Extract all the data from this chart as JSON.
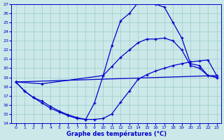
{
  "xlabel": "Graphe des températures (°C)",
  "xlim": [
    -0.5,
    23.5
  ],
  "ylim": [
    14,
    27
  ],
  "yticks": [
    14,
    15,
    16,
    17,
    18,
    19,
    20,
    21,
    22,
    23,
    24,
    25,
    26,
    27
  ],
  "xticks": [
    0,
    1,
    2,
    3,
    4,
    5,
    6,
    7,
    8,
    9,
    10,
    11,
    12,
    13,
    14,
    15,
    16,
    17,
    18,
    19,
    20,
    21,
    22,
    23
  ],
  "bg_color": "#cce8e8",
  "line_color": "#0000cc",
  "grid_color": "#99cccc",
  "line1_x": [
    0,
    1,
    2,
    3,
    4,
    5,
    6,
    7,
    8,
    9,
    10,
    11,
    12,
    13,
    14,
    15,
    16,
    17,
    18,
    19,
    20,
    21,
    22,
    23
  ],
  "line1_y": [
    18.5,
    17.5,
    16.8,
    16.2,
    15.6,
    15.2,
    14.8,
    14.5,
    14.4,
    16.2,
    19.2,
    22.5,
    25.2,
    26.0,
    27.2,
    27.2,
    27.0,
    26.7,
    25.0,
    23.3,
    20.5,
    20.3,
    19.2,
    19.0
  ],
  "line2_x": [
    0,
    3,
    10,
    11,
    12,
    13,
    14,
    15,
    16,
    17,
    18,
    19,
    20,
    21,
    22,
    23
  ],
  "line2_y": [
    18.5,
    18.3,
    19.2,
    20.2,
    21.2,
    22.0,
    22.8,
    23.2,
    23.2,
    23.3,
    23.0,
    22.0,
    20.3,
    20.0,
    19.2,
    19.0
  ],
  "line3_x": [
    0,
    23
  ],
  "line3_y": [
    18.5,
    19.2
  ],
  "line4_x": [
    0,
    1,
    2,
    3,
    4,
    5,
    6,
    7,
    8,
    9,
    10,
    11,
    12,
    13,
    14,
    15,
    16,
    17,
    18,
    19,
    20,
    21,
    22,
    23
  ],
  "line4_y": [
    18.5,
    17.5,
    16.8,
    16.4,
    15.8,
    15.3,
    14.9,
    14.6,
    14.4,
    14.4,
    14.5,
    15.0,
    16.3,
    17.5,
    18.8,
    19.3,
    19.7,
    20.0,
    20.3,
    20.5,
    20.7,
    20.8,
    20.9,
    19.2
  ]
}
